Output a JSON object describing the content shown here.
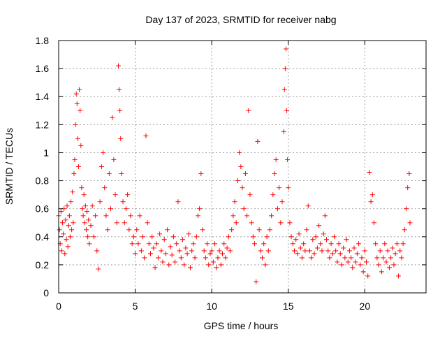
{
  "chart_data": {
    "type": "scatter",
    "title": "Day 137 of 2023, SRMTID for receiver nabg",
    "xlabel": "GPS time / hours",
    "ylabel": "SRMTID / TECUs",
    "xlim": [
      0,
      24
    ],
    "ylim": [
      0,
      1.8
    ],
    "xticks": [
      0,
      5,
      10,
      15,
      20
    ],
    "xtick_labels": [
      "0",
      "5",
      "10",
      "15",
      "20"
    ],
    "yticks": [
      0,
      0.2,
      0.4,
      0.6,
      0.8,
      1.0,
      1.2,
      1.4,
      1.6,
      1.8
    ],
    "ytick_labels": [
      "0",
      "0.2",
      "0.4",
      "0.6",
      "0.8",
      "1",
      "1.2",
      "1.4",
      "1.6",
      "1.8"
    ],
    "grid": true,
    "marker": "+",
    "series": [
      {
        "name": "SRMTID",
        "color": "#ff0000",
        "points": [
          [
            0.0,
            0.55
          ],
          [
            0.05,
            0.45
          ],
          [
            0.1,
            0.35
          ],
          [
            0.15,
            0.58
          ],
          [
            0.2,
            0.3
          ],
          [
            0.25,
            0.5
          ],
          [
            0.3,
            0.42
          ],
          [
            0.35,
            0.6
          ],
          [
            0.4,
            0.28
          ],
          [
            0.45,
            0.52
          ],
          [
            0.5,
            0.38
          ],
          [
            0.55,
            0.62
          ],
          [
            0.6,
            0.33
          ],
          [
            0.65,
            0.48
          ],
          [
            0.7,
            0.55
          ],
          [
            0.75,
            0.4
          ],
          [
            0.8,
            0.65
          ],
          [
            0.85,
            0.45
          ],
          [
            0.9,
            0.72
          ],
          [
            0.95,
            0.5
          ],
          [
            1.0,
            0.85
          ],
          [
            1.05,
            0.95
          ],
          [
            1.1,
            1.2
          ],
          [
            1.15,
            1.42
          ],
          [
            1.2,
            1.35
          ],
          [
            1.25,
            1.1
          ],
          [
            1.3,
            0.9
          ],
          [
            1.35,
            1.45
          ],
          [
            1.4,
            1.3
          ],
          [
            1.45,
            1.05
          ],
          [
            1.5,
            0.75
          ],
          [
            1.55,
            0.6
          ],
          [
            1.6,
            0.55
          ],
          [
            1.65,
            0.7
          ],
          [
            1.7,
            0.5
          ],
          [
            1.75,
            0.62
          ],
          [
            1.8,
            0.45
          ],
          [
            1.85,
            0.58
          ],
          [
            1.9,
            0.4
          ],
          [
            1.95,
            0.52
          ],
          [
            2.0,
            0.35
          ],
          [
            2.1,
            0.48
          ],
          [
            2.2,
            0.62
          ],
          [
            2.3,
            0.4
          ],
          [
            2.4,
            0.55
          ],
          [
            2.5,
            0.3
          ],
          [
            2.6,
            0.17
          ],
          [
            2.7,
            0.65
          ],
          [
            2.8,
            0.9
          ],
          [
            2.9,
            1.0
          ],
          [
            3.0,
            0.75
          ],
          [
            3.1,
            0.55
          ],
          [
            3.2,
            0.45
          ],
          [
            3.3,
            0.85
          ],
          [
            3.4,
            0.6
          ],
          [
            3.5,
            1.25
          ],
          [
            3.6,
            0.95
          ],
          [
            3.7,
            0.7
          ],
          [
            3.8,
            0.5
          ],
          [
            3.9,
            1.62
          ],
          [
            3.95,
            1.45
          ],
          [
            4.0,
            1.3
          ],
          [
            4.05,
            1.1
          ],
          [
            4.1,
            0.85
          ],
          [
            4.2,
            0.65
          ],
          [
            4.3,
            0.5
          ],
          [
            4.4,
            0.6
          ],
          [
            4.5,
            0.7
          ],
          [
            4.6,
            0.45
          ],
          [
            4.7,
            0.55
          ],
          [
            4.8,
            0.35
          ],
          [
            4.9,
            0.4
          ],
          [
            5.0,
            0.28
          ],
          [
            5.1,
            0.45
          ],
          [
            5.2,
            0.35
          ],
          [
            5.3,
            0.55
          ],
          [
            5.4,
            0.3
          ],
          [
            5.5,
            0.4
          ],
          [
            5.6,
            0.25
          ],
          [
            5.7,
            1.12
          ],
          [
            5.8,
            0.5
          ],
          [
            5.9,
            0.35
          ],
          [
            6.0,
            0.28
          ],
          [
            6.1,
            0.4
          ],
          [
            6.2,
            0.32
          ],
          [
            6.3,
            0.18
          ],
          [
            6.4,
            0.35
          ],
          [
            6.5,
            0.25
          ],
          [
            6.6,
            0.42
          ],
          [
            6.7,
            0.3
          ],
          [
            6.8,
            0.22
          ],
          [
            6.9,
            0.38
          ],
          [
            7.0,
            0.28
          ],
          [
            7.1,
            0.45
          ],
          [
            7.2,
            0.2
          ],
          [
            7.3,
            0.33
          ],
          [
            7.4,
            0.27
          ],
          [
            7.5,
            0.4
          ],
          [
            7.6,
            0.22
          ],
          [
            7.7,
            0.35
          ],
          [
            7.8,
            0.65
          ],
          [
            7.9,
            0.3
          ],
          [
            8.0,
            0.25
          ],
          [
            8.1,
            0.38
          ],
          [
            8.2,
            0.2
          ],
          [
            8.3,
            0.32
          ],
          [
            8.4,
            0.28
          ],
          [
            8.5,
            0.42
          ],
          [
            8.6,
            0.18
          ],
          [
            8.7,
            0.3
          ],
          [
            8.8,
            0.35
          ],
          [
            8.9,
            0.25
          ],
          [
            9.0,
            0.4
          ],
          [
            9.1,
            0.55
          ],
          [
            9.2,
            0.6
          ],
          [
            9.3,
            0.85
          ],
          [
            9.4,
            0.45
          ],
          [
            9.5,
            0.3
          ],
          [
            9.6,
            0.25
          ],
          [
            9.7,
            0.35
          ],
          [
            9.8,
            0.2
          ],
          [
            9.9,
            0.28
          ],
          [
            10.0,
            0.3
          ],
          [
            10.1,
            0.22
          ],
          [
            10.2,
            0.35
          ],
          [
            10.3,
            0.18
          ],
          [
            10.4,
            0.25
          ],
          [
            10.5,
            0.3
          ],
          [
            10.6,
            0.2
          ],
          [
            10.7,
            0.28
          ],
          [
            10.8,
            0.35
          ],
          [
            10.9,
            0.25
          ],
          [
            11.0,
            0.32
          ],
          [
            11.1,
            0.4
          ],
          [
            11.2,
            0.3
          ],
          [
            11.3,
            0.45
          ],
          [
            11.4,
            0.55
          ],
          [
            11.5,
            0.65
          ],
          [
            11.6,
            0.5
          ],
          [
            11.7,
            0.8
          ],
          [
            11.8,
            1.0
          ],
          [
            11.9,
            0.9
          ],
          [
            12.0,
            0.75
          ],
          [
            12.1,
            0.6
          ],
          [
            12.2,
            0.85
          ],
          [
            12.3,
            0.55
          ],
          [
            12.4,
            1.3
          ],
          [
            12.5,
            0.7
          ],
          [
            12.6,
            0.5
          ],
          [
            12.7,
            0.4
          ],
          [
            12.8,
            0.35
          ],
          [
            12.9,
            0.08
          ],
          [
            13.0,
            1.08
          ],
          [
            13.1,
            0.45
          ],
          [
            13.2,
            0.3
          ],
          [
            13.3,
            0.25
          ],
          [
            13.4,
            0.35
          ],
          [
            13.5,
            0.2
          ],
          [
            13.6,
            0.4
          ],
          [
            13.7,
            0.3
          ],
          [
            13.8,
            0.45
          ],
          [
            13.9,
            0.55
          ],
          [
            14.0,
            0.7
          ],
          [
            14.1,
            0.85
          ],
          [
            14.2,
            0.95
          ],
          [
            14.3,
            0.6
          ],
          [
            14.4,
            0.75
          ],
          [
            14.5,
            0.5
          ],
          [
            14.6,
            0.65
          ],
          [
            14.7,
            1.15
          ],
          [
            14.75,
            1.45
          ],
          [
            14.8,
            1.6
          ],
          [
            14.85,
            1.74
          ],
          [
            14.9,
            1.3
          ],
          [
            14.95,
            0.95
          ],
          [
            15.0,
            0.75
          ],
          [
            15.1,
            0.5
          ],
          [
            15.2,
            0.4
          ],
          [
            15.3,
            0.35
          ],
          [
            15.4,
            0.3
          ],
          [
            15.5,
            0.38
          ],
          [
            15.6,
            0.28
          ],
          [
            15.7,
            0.42
          ],
          [
            15.8,
            0.32
          ],
          [
            15.9,
            0.25
          ],
          [
            16.0,
            0.35
          ],
          [
            16.1,
            0.3
          ],
          [
            16.2,
            0.45
          ],
          [
            16.3,
            0.62
          ],
          [
            16.4,
            0.3
          ],
          [
            16.5,
            0.25
          ],
          [
            16.6,
            0.38
          ],
          [
            16.7,
            0.28
          ],
          [
            16.8,
            0.4
          ],
          [
            16.9,
            0.32
          ],
          [
            17.0,
            0.48
          ],
          [
            17.1,
            0.35
          ],
          [
            17.2,
            0.3
          ],
          [
            17.3,
            0.42
          ],
          [
            17.4,
            0.55
          ],
          [
            17.5,
            0.38
          ],
          [
            17.6,
            0.3
          ],
          [
            17.7,
            0.25
          ],
          [
            17.8,
            0.35
          ],
          [
            17.9,
            0.28
          ],
          [
            18.0,
            0.4
          ],
          [
            18.1,
            0.3
          ],
          [
            18.2,
            0.22
          ],
          [
            18.3,
            0.35
          ],
          [
            18.4,
            0.28
          ],
          [
            18.5,
            0.2
          ],
          [
            18.6,
            0.32
          ],
          [
            18.7,
            0.25
          ],
          [
            18.8,
            0.38
          ],
          [
            18.9,
            0.22
          ],
          [
            19.0,
            0.3
          ],
          [
            19.1,
            0.25
          ],
          [
            19.2,
            0.18
          ],
          [
            19.3,
            0.32
          ],
          [
            19.4,
            0.22
          ],
          [
            19.5,
            0.28
          ],
          [
            19.6,
            0.35
          ],
          [
            19.7,
            0.2
          ],
          [
            19.8,
            0.25
          ],
          [
            19.9,
            0.15
          ],
          [
            20.0,
            0.3
          ],
          [
            20.1,
            0.22
          ],
          [
            20.2,
            0.12
          ],
          [
            20.3,
            0.86
          ],
          [
            20.4,
            0.65
          ],
          [
            20.5,
            0.7
          ],
          [
            20.6,
            0.5
          ],
          [
            20.7,
            0.35
          ],
          [
            20.8,
            0.25
          ],
          [
            20.9,
            0.2
          ],
          [
            21.0,
            0.3
          ],
          [
            21.1,
            0.15
          ],
          [
            21.2,
            0.25
          ],
          [
            21.3,
            0.35
          ],
          [
            21.4,
            0.22
          ],
          [
            21.5,
            0.3
          ],
          [
            21.6,
            0.18
          ],
          [
            21.7,
            0.25
          ],
          [
            21.8,
            0.32
          ],
          [
            21.9,
            0.2
          ],
          [
            22.0,
            0.28
          ],
          [
            22.1,
            0.35
          ],
          [
            22.2,
            0.12
          ],
          [
            22.3,
            0.3
          ],
          [
            22.4,
            0.25
          ],
          [
            22.5,
            0.35
          ],
          [
            22.6,
            0.45
          ],
          [
            22.7,
            0.6
          ],
          [
            22.8,
            0.75
          ],
          [
            22.9,
            0.85
          ],
          [
            22.95,
            0.5
          ]
        ]
      }
    ]
  }
}
